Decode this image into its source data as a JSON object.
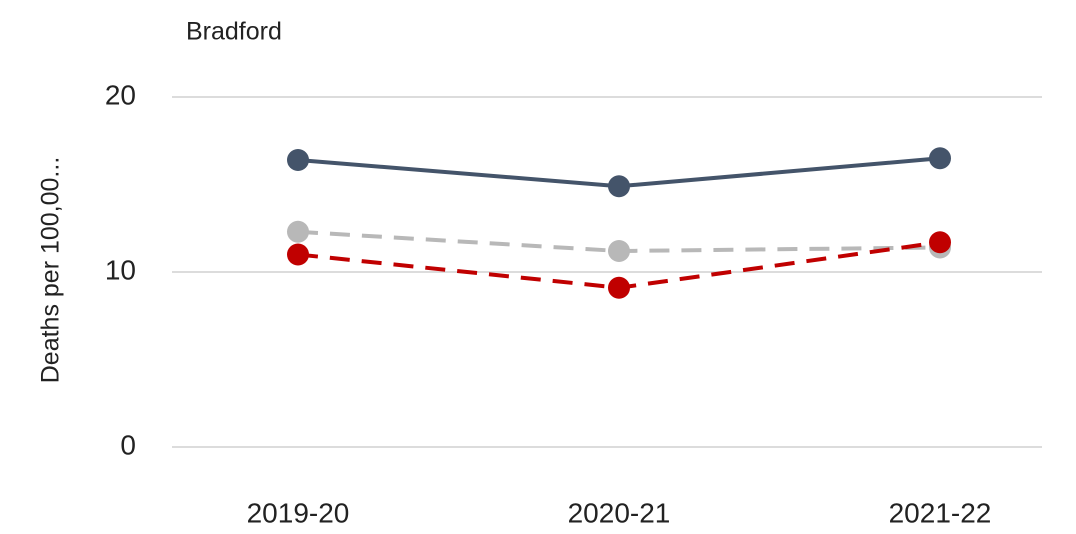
{
  "chart_data": {
    "type": "line",
    "title": "Bradford",
    "y_label": "Deaths per 100,00...",
    "categories": [
      "2019-20",
      "2020-21",
      "2021-22"
    ],
    "series": [
      {
        "color": "#44546a",
        "dashed": false,
        "values": [
          16.4,
          14.9,
          16.5
        ]
      },
      {
        "color": "#b8b8b8",
        "dashed": true,
        "values": [
          12.3,
          11.2,
          11.4
        ]
      },
      {
        "color": "#c00000",
        "dashed": true,
        "values": [
          11.0,
          9.1,
          11.7
        ]
      }
    ],
    "ylim": [
      0,
      20
    ],
    "yticks": [
      0,
      10,
      20
    ],
    "grid": true
  }
}
